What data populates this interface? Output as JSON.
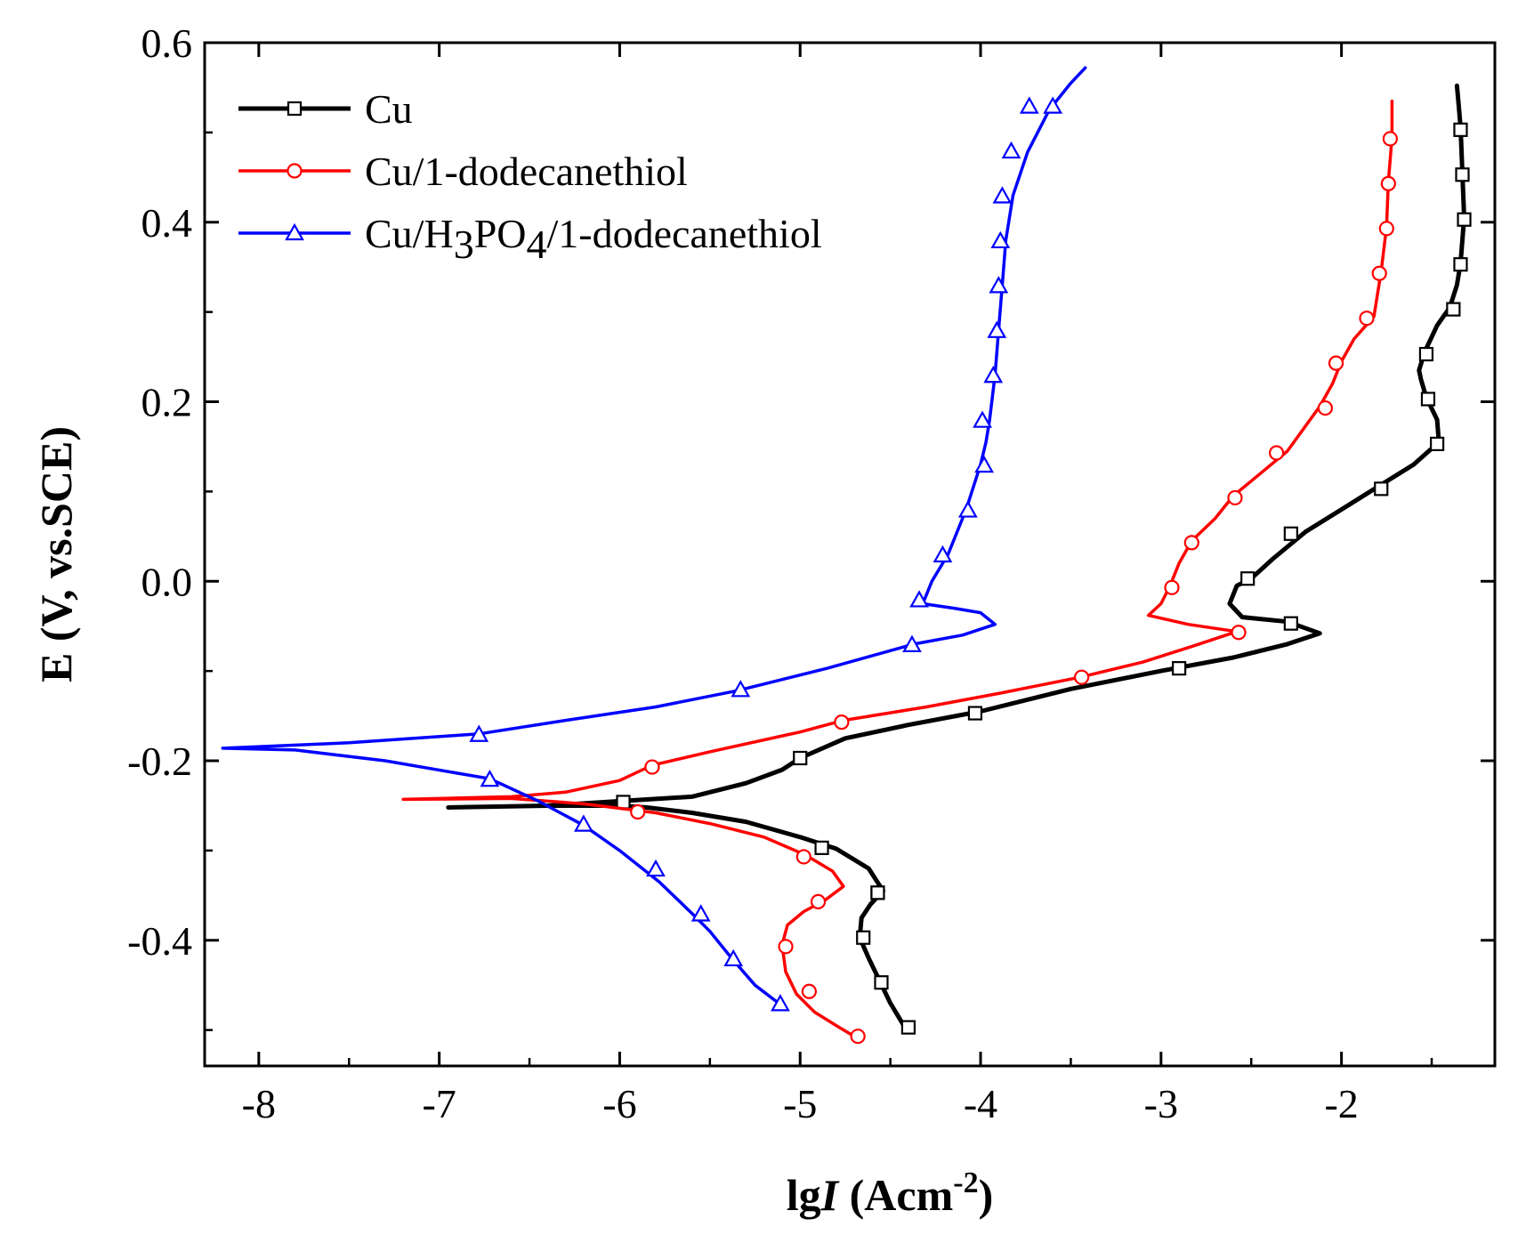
{
  "chart_data": {
    "type": "line",
    "title": "",
    "xlabel": {
      "prefix": "lg",
      "italic": "I",
      "rest": " (Acm",
      "sup": "-2",
      "close": ")"
    },
    "ylabel": "E (V, vs.SCE)",
    "xlim": [
      -8.3,
      -1.15
    ],
    "ylim": [
      -0.54,
      0.6
    ],
    "xticks": [
      -8,
      -7,
      -6,
      -5,
      -4,
      -3,
      -2
    ],
    "xtick_labels": [
      "-8",
      "-7",
      "-6",
      "-5",
      "-4",
      "-3",
      "-2"
    ],
    "yticks": [
      -0.4,
      -0.2,
      0.0,
      0.2,
      0.4,
      0.6
    ],
    "ytick_labels": [
      "-0.4",
      "-0.2",
      "0.0",
      "0.2",
      "0.4",
      "0.6"
    ],
    "legend_position": "top-left",
    "series": [
      {
        "name": "Cu",
        "legend": {
          "parts": [
            {
              "t": "Cu"
            }
          ]
        },
        "color": "#000000",
        "marker": "square",
        "x": [
          -4.42,
          -4.5,
          -4.56,
          -4.62,
          -4.67,
          -4.66,
          -4.61,
          -4.54,
          -4.62,
          -4.8,
          -5.0,
          -5.3,
          -5.6,
          -5.85,
          -6.0,
          -6.4,
          -6.95,
          -6.4,
          -6.0,
          -5.6,
          -5.3,
          -5.1,
          -5.0,
          -4.75,
          -4.4,
          -4.0,
          -3.5,
          -3.0,
          -2.6,
          -2.3,
          -2.12,
          -2.3,
          -2.55,
          -2.62,
          -2.58,
          -2.5,
          -2.38,
          -2.2,
          -2.0,
          -1.8,
          -1.6,
          -1.46,
          -1.47,
          -1.53,
          -1.56,
          -1.57,
          -1.54,
          -1.47,
          -1.4,
          -1.36,
          -1.34,
          -1.32,
          -1.33,
          -1.34,
          -1.35,
          -1.36
        ],
        "y": [
          -0.497,
          -0.47,
          -0.445,
          -0.42,
          -0.397,
          -0.375,
          -0.36,
          -0.345,
          -0.32,
          -0.298,
          -0.285,
          -0.268,
          -0.258,
          -0.252,
          -0.25,
          -0.25,
          -0.252,
          -0.25,
          -0.245,
          -0.24,
          -0.225,
          -0.21,
          -0.197,
          -0.175,
          -0.16,
          -0.145,
          -0.12,
          -0.1,
          -0.085,
          -0.07,
          -0.058,
          -0.045,
          -0.04,
          -0.025,
          -0.005,
          0.003,
          0.025,
          0.055,
          0.08,
          0.105,
          0.13,
          0.155,
          0.18,
          0.205,
          0.225,
          0.235,
          0.255,
          0.285,
          0.305,
          0.33,
          0.355,
          0.405,
          0.455,
          0.505,
          0.53,
          0.552
        ],
        "markers_x": [
          -4.4,
          -4.55,
          -4.57,
          -4.65,
          -4.57,
          -4.88,
          -5.98,
          -5.0,
          -4.03,
          -2.9,
          -2.28,
          -2.28,
          -2.52,
          -1.78,
          -1.47,
          -1.52,
          -1.53,
          -1.38,
          -1.34,
          -1.32,
          -1.33,
          -1.34
        ],
        "markers_y": [
          -0.497,
          -0.447,
          -0.347,
          -0.397,
          -0.347,
          -0.297,
          -0.246,
          -0.197,
          -0.147,
          -0.097,
          -0.047,
          0.053,
          0.003,
          0.103,
          0.153,
          0.203,
          0.253,
          0.303,
          0.353,
          0.403,
          0.453,
          0.503
        ]
      },
      {
        "name": "Cu/1-dodecanethiol",
        "legend": {
          "parts": [
            {
              "t": "Cu/1-dodecanethiol"
            }
          ]
        },
        "color": "#ff0000",
        "marker": "circle",
        "x": [
          -4.7,
          -4.8,
          -4.92,
          -5.02,
          -5.08,
          -5.1,
          -5.07,
          -4.98,
          -4.86,
          -4.76,
          -4.82,
          -4.97,
          -5.2,
          -5.5,
          -5.8,
          -6.2,
          -6.6,
          -7.2,
          -6.6,
          -6.3,
          -6.0,
          -5.82,
          -5.5,
          -5.0,
          -4.76,
          -4.3,
          -3.9,
          -3.45,
          -3.1,
          -2.82,
          -2.58,
          -2.85,
          -3.07,
          -3.0,
          -2.95,
          -2.9,
          -2.83,
          -2.7,
          -2.6,
          -2.45,
          -2.3,
          -2.12,
          -2.05,
          -2.0,
          -1.93,
          -1.82,
          -1.78,
          -1.75,
          -1.74,
          -1.73,
          -1.72,
          -1.72
        ],
        "y": [
          -0.507,
          -0.495,
          -0.48,
          -0.46,
          -0.435,
          -0.405,
          -0.383,
          -0.368,
          -0.355,
          -0.34,
          -0.323,
          -0.305,
          -0.285,
          -0.27,
          -0.258,
          -0.248,
          -0.242,
          -0.243,
          -0.24,
          -0.235,
          -0.222,
          -0.205,
          -0.19,
          -0.168,
          -0.155,
          -0.14,
          -0.125,
          -0.107,
          -0.09,
          -0.072,
          -0.056,
          -0.048,
          -0.038,
          -0.025,
          -0.005,
          0.02,
          0.045,
          0.07,
          0.095,
          0.12,
          0.145,
          0.195,
          0.22,
          0.245,
          0.27,
          0.295,
          0.345,
          0.395,
          0.445,
          0.47,
          0.495,
          0.535
        ],
        "markers_x": [
          -4.68,
          -4.95,
          -5.08,
          -4.9,
          -4.98,
          -5.9,
          -5.82,
          -4.77,
          -3.44,
          -2.57,
          -2.94,
          -2.83,
          -2.59,
          -2.36,
          -2.09,
          -2.03,
          -1.86,
          -1.79,
          -1.75,
          -1.74,
          -1.73
        ],
        "markers_y": [
          -0.507,
          -0.457,
          -0.407,
          -0.357,
          -0.307,
          -0.257,
          -0.207,
          -0.157,
          -0.107,
          -0.057,
          -0.007,
          0.043,
          0.093,
          0.143,
          0.193,
          0.243,
          0.293,
          0.343,
          0.393,
          0.443,
          0.493
        ]
      },
      {
        "name": "Cu/H3PO4/1-dodecanethiol",
        "legend": {
          "parts": [
            {
              "t": "Cu/H"
            },
            {
              "t": "3",
              "sub": true
            },
            {
              "t": "PO"
            },
            {
              "t": "4",
              "sub": true
            },
            {
              "t": "/1-dodecanethiol"
            }
          ]
        },
        "color": "#0000ff",
        "marker": "triangle",
        "x": [
          -5.12,
          -5.25,
          -5.38,
          -5.5,
          -5.6,
          -5.78,
          -6.0,
          -6.2,
          -6.45,
          -6.72,
          -7.3,
          -7.8,
          -8.2,
          -7.5,
          -6.78,
          -6.3,
          -5.8,
          -5.35,
          -4.85,
          -4.37,
          -4.1,
          -3.92,
          -4.0,
          -4.15,
          -4.32,
          -4.27,
          -4.18,
          -4.08,
          -4.0,
          -3.97,
          -3.95,
          -3.92,
          -3.9,
          -3.88,
          -3.86,
          -3.82,
          -3.74,
          -3.62,
          -3.5,
          -3.42
        ],
        "y": [
          -0.47,
          -0.45,
          -0.42,
          -0.39,
          -0.37,
          -0.335,
          -0.3,
          -0.272,
          -0.245,
          -0.22,
          -0.2,
          -0.188,
          -0.186,
          -0.18,
          -0.17,
          -0.155,
          -0.14,
          -0.122,
          -0.097,
          -0.07,
          -0.06,
          -0.048,
          -0.035,
          -0.03,
          -0.025,
          0.0,
          0.03,
          0.08,
          0.13,
          0.155,
          0.18,
          0.23,
          0.28,
          0.33,
          0.38,
          0.43,
          0.478,
          0.525,
          0.555,
          0.572
        ],
        "markers_x": [
          -5.11,
          -5.37,
          -5.55,
          -5.8,
          -6.2,
          -6.72,
          -6.78,
          -5.33,
          -4.38,
          -4.34,
          -4.21,
          -4.07,
          -3.98,
          -3.99,
          -3.93,
          -3.91,
          -3.9,
          -3.89,
          -3.88,
          -3.83,
          -3.73,
          -3.6
        ],
        "markers_y": [
          -0.471,
          -0.421,
          -0.371,
          -0.321,
          -0.271,
          -0.221,
          -0.171,
          -0.121,
          -0.071,
          -0.021,
          0.029,
          0.079,
          0.129,
          0.179,
          0.229,
          0.279,
          0.329,
          0.379,
          0.429,
          0.479,
          0.529,
          0.529
        ]
      }
    ]
  }
}
